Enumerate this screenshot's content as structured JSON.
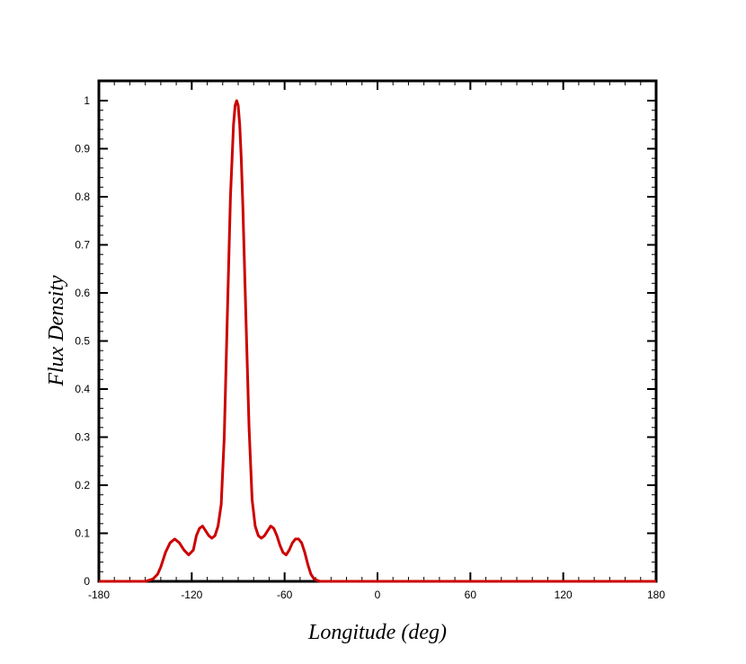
{
  "chart_data": {
    "type": "line",
    "title": "",
    "xlabel": "Longitude (deg)",
    "ylabel": "Flux Density",
    "xlim": [
      -180,
      180
    ],
    "ylim": [
      0,
      1
    ],
    "x_ticks": [
      -180,
      -120,
      -60,
      0,
      60,
      120,
      180
    ],
    "y_ticks": [
      0,
      0.1,
      0.2,
      0.3,
      0.4,
      0.5,
      0.6,
      0.7,
      0.8,
      0.9,
      1
    ],
    "x_tick_labels": [
      "-180",
      "-120",
      "-60",
      "0",
      "60",
      "120",
      "180"
    ],
    "y_tick_labels": [
      "0",
      "0.1",
      "0.2",
      "0.3",
      "0.4",
      "0.5",
      "0.6",
      "0.7",
      "0.8",
      "0.9",
      "1"
    ],
    "grid": false,
    "line_color": "#cc0000",
    "series": [
      {
        "x": [
          -180,
          -150,
          -145,
          -142,
          -140,
          -137,
          -134,
          -131,
          -128,
          -125,
          -122,
          -119,
          -117,
          -115,
          -113,
          -111,
          -109,
          -107,
          -105,
          -103,
          -101,
          -99,
          -97,
          -95,
          -93,
          -92,
          -91,
          -90,
          -89,
          -88,
          -87,
          -85,
          -83,
          -81,
          -79,
          -77,
          -75,
          -73,
          -71,
          -69,
          -67,
          -65,
          -63,
          -61,
          -59,
          -57,
          -55,
          -53,
          -51,
          -49,
          -47,
          -45,
          -43,
          -41,
          -39,
          -37,
          -35,
          -32,
          0,
          180
        ],
        "y": [
          0,
          0,
          0.005,
          0.015,
          0.03,
          0.06,
          0.08,
          0.088,
          0.08,
          0.065,
          0.055,
          0.065,
          0.095,
          0.11,
          0.115,
          0.105,
          0.095,
          0.09,
          0.095,
          0.115,
          0.16,
          0.3,
          0.55,
          0.8,
          0.95,
          0.99,
          1.0,
          0.99,
          0.95,
          0.88,
          0.78,
          0.55,
          0.32,
          0.17,
          0.115,
          0.095,
          0.09,
          0.095,
          0.105,
          0.115,
          0.11,
          0.095,
          0.075,
          0.06,
          0.055,
          0.065,
          0.08,
          0.088,
          0.088,
          0.08,
          0.06,
          0.035,
          0.015,
          0.005,
          0.002,
          0,
          0,
          0,
          0,
          0
        ]
      }
    ]
  }
}
